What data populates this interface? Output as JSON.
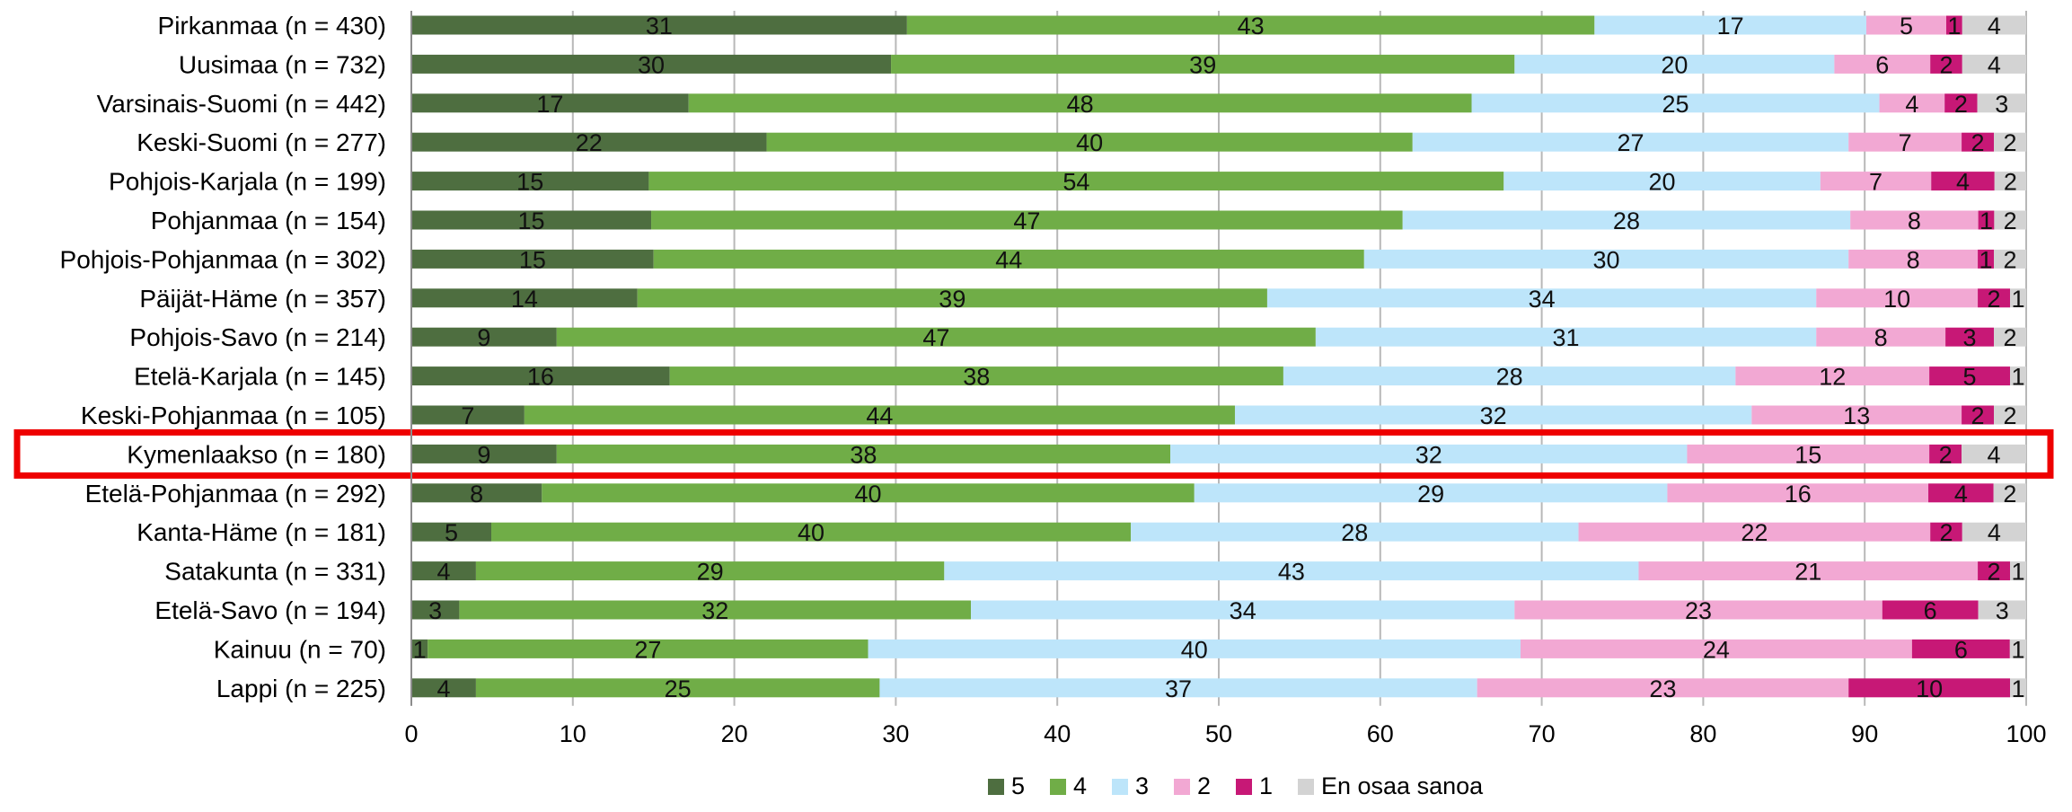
{
  "chart_data": {
    "type": "bar",
    "orientation": "horizontal",
    "stacked": true,
    "title": "",
    "xlabel": "",
    "ylabel": "",
    "xlim": [
      0,
      100
    ],
    "xticks": [
      0,
      10,
      20,
      30,
      40,
      50,
      60,
      70,
      80,
      90,
      100
    ],
    "grid": true,
    "legend_position": "bottom",
    "highlighted_category": "Kymenlaakso (n = 180)",
    "highlight_color": "#ee0000",
    "categories": [
      "Pirkanmaa (n = 430)",
      "Uusimaa (n = 732)",
      "Varsinais-Suomi (n = 442)",
      "Keski-Suomi (n = 277)",
      "Pohjois-Karjala (n = 199)",
      "Pohjanmaa (n = 154)",
      "Pohjois-Pohjanmaa (n = 302)",
      "Päijät-Häme (n = 357)",
      "Pohjois-Savo (n = 214)",
      "Etelä-Karjala (n = 145)",
      "Keski-Pohjanmaa (n = 105)",
      "Kymenlaakso (n = 180)",
      "Etelä-Pohjanmaa (n = 292)",
      "Kanta-Häme (n = 181)",
      "Satakunta (n = 331)",
      "Etelä-Savo (n = 194)",
      "Kainuu (n = 70)",
      "Lappi (n = 225)"
    ],
    "series": [
      {
        "name": "5",
        "color": "#4e6e40",
        "values": [
          31,
          30,
          17,
          22,
          15,
          15,
          15,
          14,
          9,
          16,
          7,
          9,
          8,
          5,
          4,
          3,
          1,
          4
        ]
      },
      {
        "name": "4",
        "color": "#70ad47",
        "values": [
          43,
          39,
          48,
          40,
          54,
          47,
          44,
          39,
          47,
          38,
          44,
          38,
          40,
          40,
          29,
          32,
          27,
          25
        ]
      },
      {
        "name": "3",
        "color": "#bde5fa",
        "values": [
          17,
          20,
          25,
          27,
          20,
          28,
          30,
          34,
          31,
          28,
          32,
          32,
          29,
          28,
          43,
          34,
          40,
          37
        ]
      },
      {
        "name": "2",
        "color": "#f2a8d3",
        "values": [
          5,
          6,
          4,
          7,
          7,
          8,
          8,
          10,
          8,
          12,
          13,
          15,
          16,
          22,
          21,
          23,
          24,
          23
        ]
      },
      {
        "name": "1",
        "color": "#c71876",
        "values": [
          1,
          2,
          2,
          2,
          4,
          1,
          1,
          2,
          3,
          5,
          2,
          2,
          4,
          2,
          2,
          6,
          6,
          10
        ]
      },
      {
        "name": "En osaa sanoa",
        "color": "#d3d3d3",
        "values": [
          4,
          4,
          3,
          2,
          2,
          2,
          2,
          1,
          2,
          1,
          2,
          4,
          2,
          4,
          1,
          3,
          1,
          1
        ]
      }
    ]
  }
}
